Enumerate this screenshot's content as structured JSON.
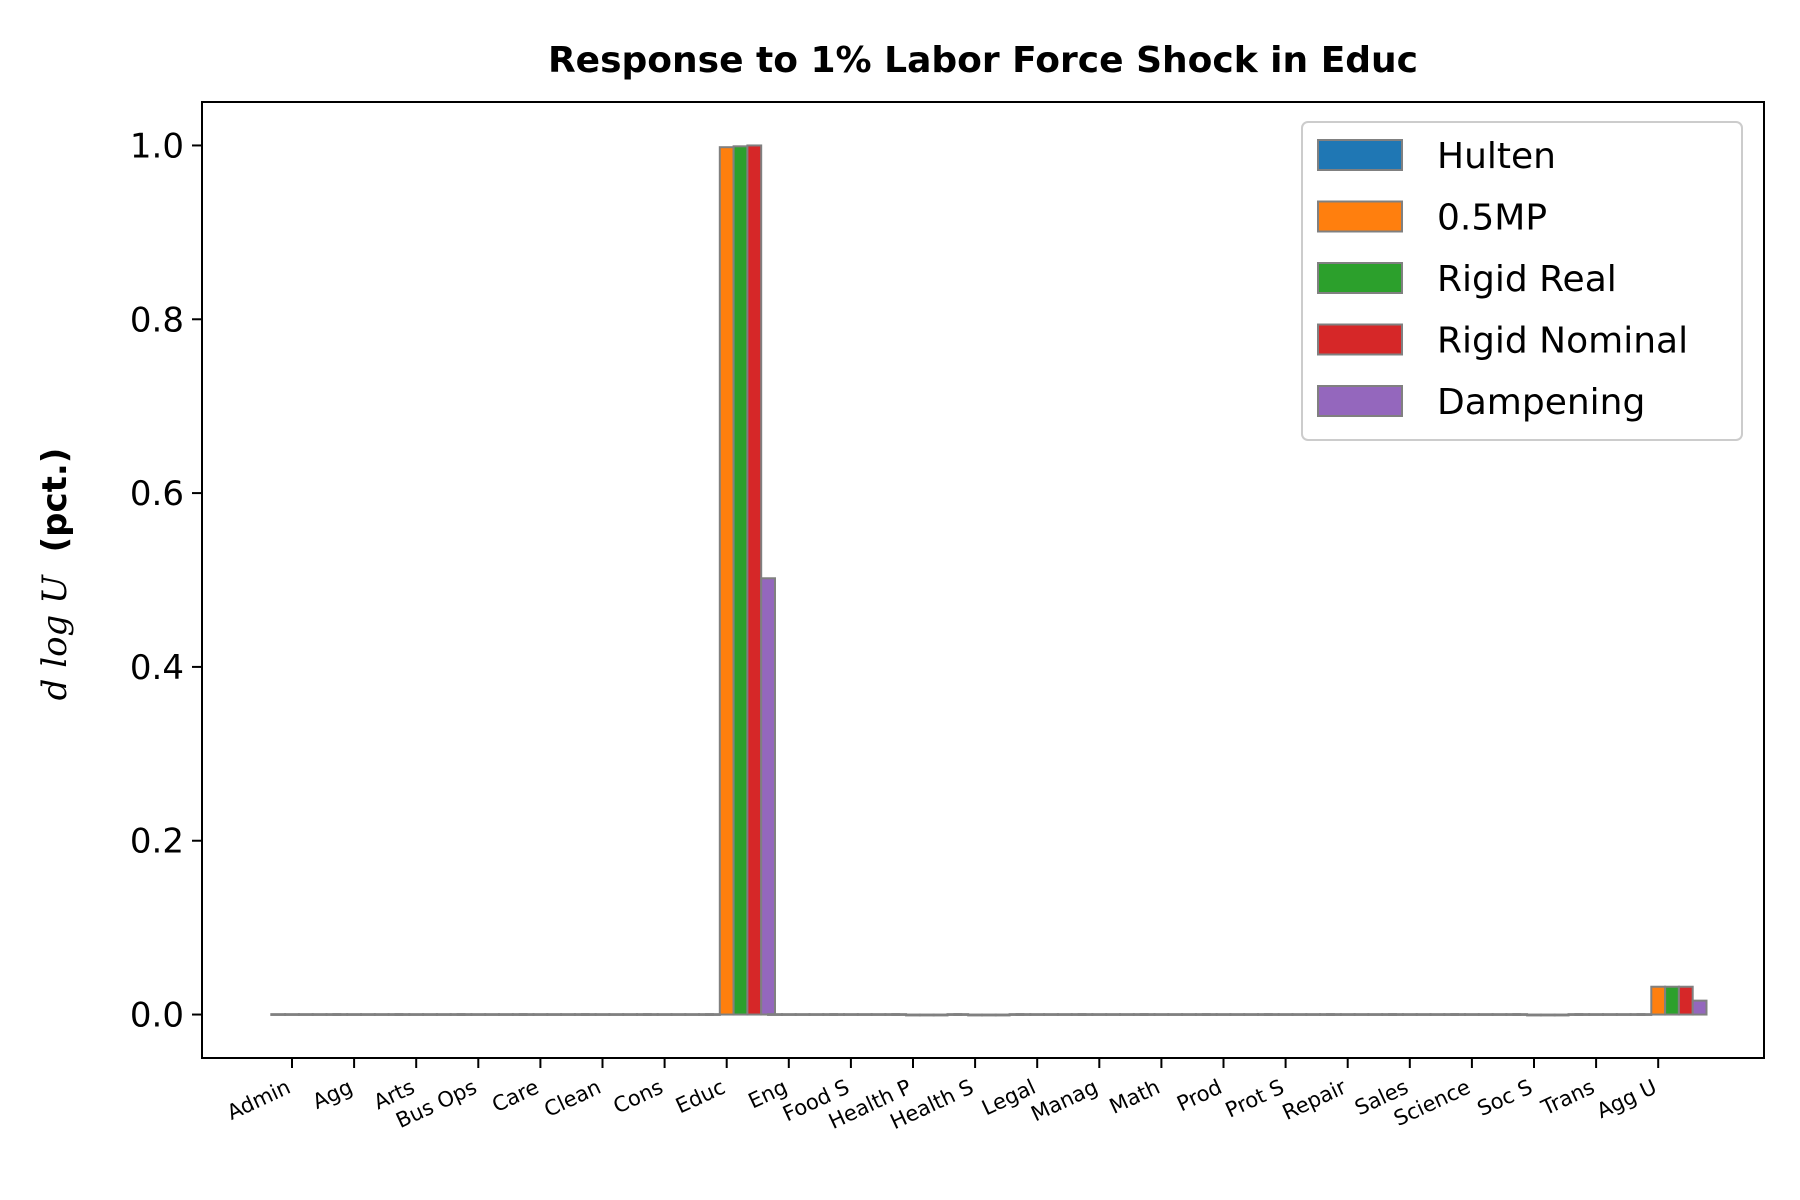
{
  "chart_data": {
    "type": "bar",
    "title": "Response to 1% Labor Force Shock in Educ",
    "xlabel": "",
    "ylabel_math": "d log U",
    "ylabel_suffix": "(pct.)",
    "ylim": [
      -0.05,
      1.05
    ],
    "yticks": [
      "0.0",
      "0.2",
      "0.4",
      "0.6",
      "0.8",
      "1.0"
    ],
    "grid": false,
    "legend_position": "top-right",
    "categories": [
      "Admin",
      "Agg",
      "Arts",
      "Bus Ops",
      "Care",
      "Clean",
      "Cons",
      "Educ",
      "Eng",
      "Food S",
      "Health P",
      "Health S",
      "Legal",
      "Manag",
      "Math",
      "Prod",
      "Prot S",
      "Repair",
      "Sales",
      "Science",
      "Soc S",
      "Trans",
      "Agg U"
    ],
    "series": [
      {
        "name": "Hulten",
        "color": "#1f77b4",
        "values": [
          0,
          0,
          0,
          0,
          0,
          0,
          0,
          0,
          0,
          0,
          0,
          0,
          0,
          0,
          0,
          0,
          0,
          0,
          0,
          0,
          0,
          0,
          0
        ]
      },
      {
        "name": "0.5MP",
        "color": "#ff7f0e",
        "values": [
          0,
          0,
          0,
          0,
          0,
          0,
          0,
          0.998,
          0,
          0,
          -0.001,
          -0.001,
          0,
          0,
          0,
          0,
          0,
          0,
          0,
          0,
          -0.001,
          0,
          0.032
        ]
      },
      {
        "name": "Rigid Real",
        "color": "#2ca02c",
        "values": [
          0,
          0,
          0,
          0,
          0,
          0,
          0,
          0.999,
          0,
          0,
          -0.001,
          -0.001,
          0,
          0,
          0,
          0,
          0,
          0,
          0,
          0,
          -0.001,
          0,
          0.032
        ]
      },
      {
        "name": "Rigid Nominal",
        "color": "#d62728",
        "values": [
          0,
          0,
          0,
          0,
          0,
          0,
          0,
          1.0,
          0,
          0,
          -0.001,
          -0.001,
          0,
          0,
          0,
          0,
          0,
          0,
          0,
          0,
          -0.001,
          0,
          0.032
        ]
      },
      {
        "name": "Dampening",
        "color": "#9467bd",
        "values": [
          0,
          0,
          0,
          0,
          0,
          0,
          0,
          0.502,
          0,
          0,
          0,
          0,
          0,
          0,
          0,
          0,
          0,
          0,
          0,
          0,
          0,
          0,
          0.016
        ]
      }
    ],
    "edge_color": "#808080"
  }
}
